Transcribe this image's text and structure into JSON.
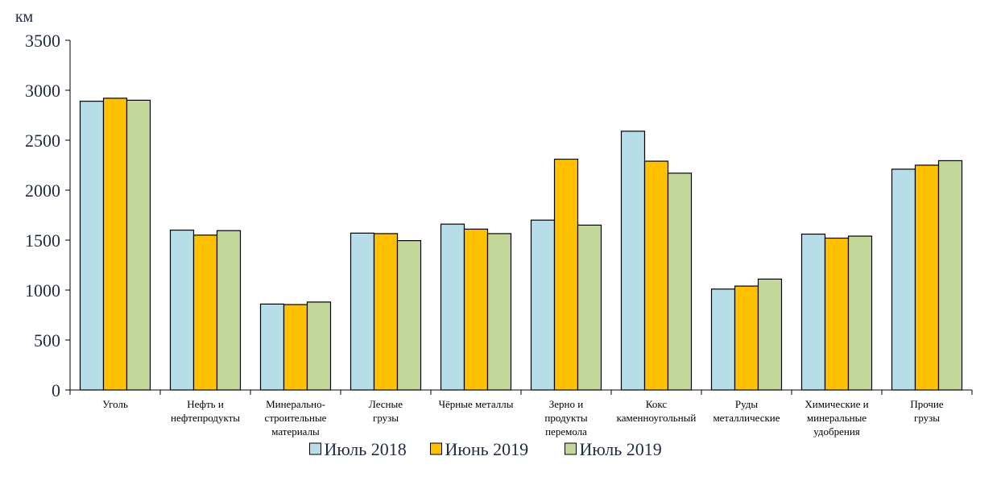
{
  "chart_data": {
    "type": "bar",
    "unit_label": "км",
    "ylim": [
      0,
      3500
    ],
    "yticks": [
      0,
      500,
      1000,
      1500,
      2000,
      2500,
      3000,
      3500
    ],
    "grid": false,
    "legend_position": "bottom",
    "categories": [
      [
        "Уголь"
      ],
      [
        "Нефть и",
        "нефтепродукты"
      ],
      [
        "Минерально-",
        "строительные",
        "материалы"
      ],
      [
        "Лесные",
        "грузы"
      ],
      [
        "Чёрные металлы"
      ],
      [
        "Зерно и",
        "продукты",
        "перемола"
      ],
      [
        "Кокс",
        "каменноугольный"
      ],
      [
        "Руды",
        "металлические"
      ],
      [
        "Химические и",
        "минеральные",
        "удобрения"
      ],
      [
        "Прочие",
        "грузы"
      ]
    ],
    "series": [
      {
        "name": "Июль 2018",
        "color": "#b7dde8",
        "values": [
          2890,
          1600,
          860,
          1570,
          1660,
          1700,
          2590,
          1010,
          1560,
          2210
        ]
      },
      {
        "name": "Июнь 2019",
        "color": "#ffc000",
        "values": [
          2920,
          1550,
          855,
          1565,
          1610,
          2310,
          2290,
          1040,
          1520,
          2250
        ]
      },
      {
        "name": "Июль 2019",
        "color": "#c4d79b",
        "values": [
          2900,
          1595,
          880,
          1495,
          1565,
          1650,
          2170,
          1110,
          1540,
          2295
        ]
      }
    ]
  }
}
